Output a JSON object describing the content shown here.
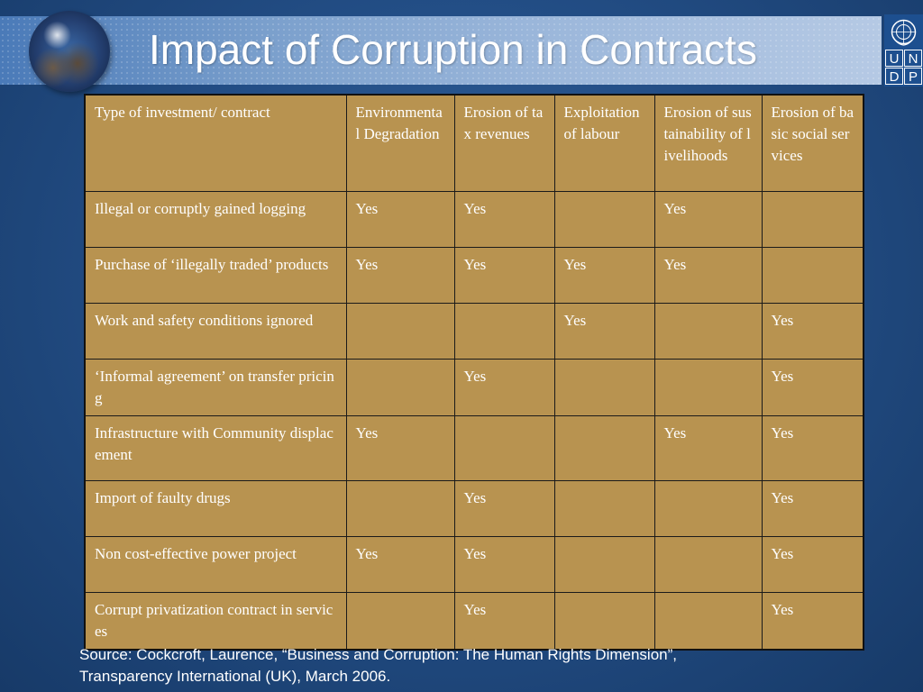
{
  "slide": {
    "title": "Impact of Corruption in Contracts"
  },
  "logo": {
    "undp_letters": [
      "U",
      "N",
      "D",
      "P"
    ]
  },
  "table": {
    "headers": [
      "Type of investment/ contract",
      "Environmental Degradation",
      "Erosion of tax revenues",
      "Exploitation of labour",
      "Erosion of sustainability of livelihoods",
      "Erosion of basic social services"
    ],
    "rows": [
      [
        "Illegal or corruptly gained logging",
        "Yes",
        "Yes",
        "",
        "Yes",
        ""
      ],
      [
        "Purchase of ‘illegally traded’ products",
        "Yes",
        "Yes",
        "Yes",
        "Yes",
        ""
      ],
      [
        "Work and safety conditions ignored",
        "",
        "",
        "Yes",
        "",
        "Yes"
      ],
      [
        "‘Informal agreement’ on transfer pricing",
        "",
        "Yes",
        "",
        "",
        "Yes"
      ],
      [
        "Infrastructure with Community  displacement",
        "Yes",
        "",
        "",
        "Yes",
        "Yes"
      ],
      [
        "Import of faulty drugs",
        "",
        "Yes",
        "",
        "",
        "Yes"
      ],
      [
        "Non cost-effective power project",
        "Yes",
        "Yes",
        "",
        "",
        "Yes"
      ],
      [
        "Corrupt privatization contract in services",
        "",
        "Yes",
        "",
        "",
        "Yes"
      ]
    ]
  },
  "footer": {
    "source_line1": "Source: Cockcroft, Laurence, “Business and Corruption:  The Human Rights Dimension”,",
    "source_line2": "Transparency International (UK), March 2006."
  },
  "colors": {
    "background": "#234e86",
    "table_fill": "#b89350",
    "title_band": "#9ab6da",
    "text": "#ffffff"
  },
  "icons": {
    "globe": "globe-icon",
    "un_emblem": "un-emblem-icon"
  }
}
